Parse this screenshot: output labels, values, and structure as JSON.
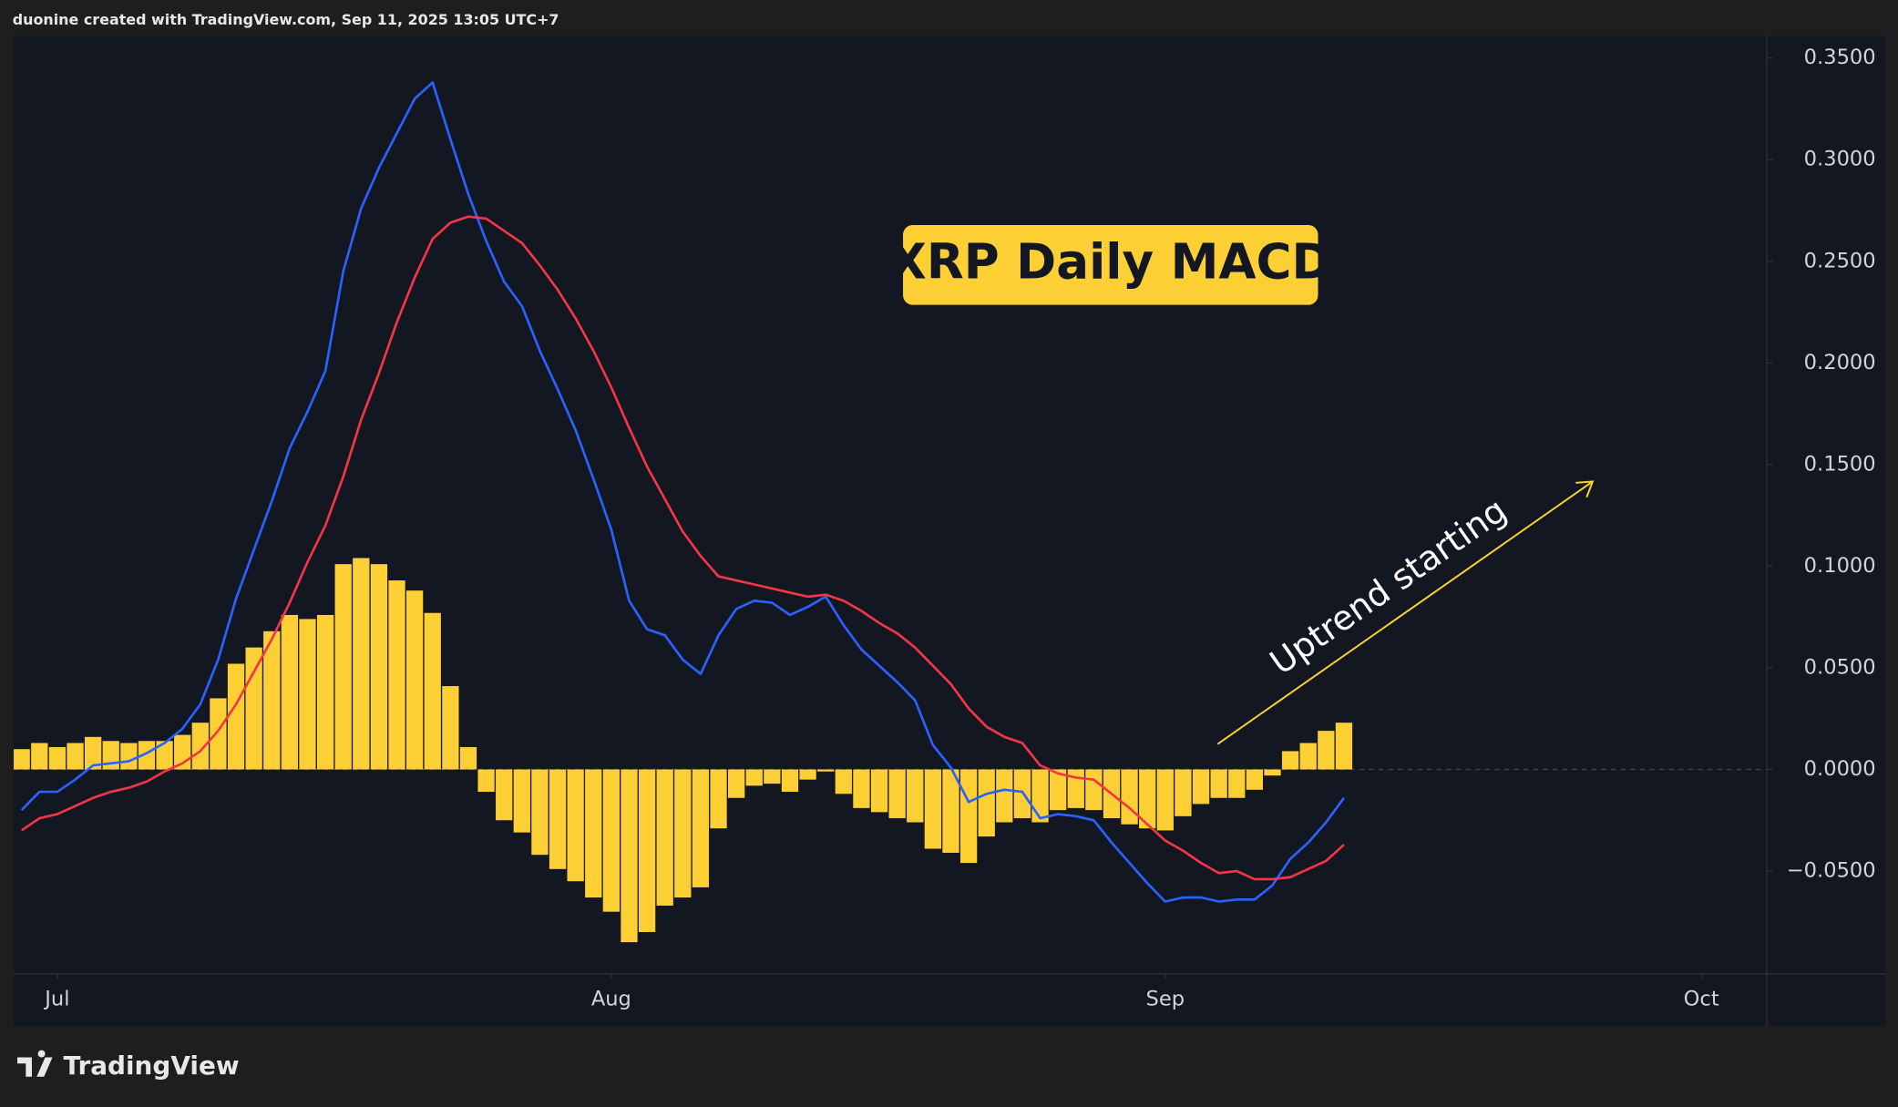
{
  "header": "duonine created with TradingView.com, Sep 11, 2025 13:05 UTC+7",
  "footer": "TradingView",
  "chart_data": {
    "type": "macd",
    "title": "XRP Daily MACD",
    "annotation": "Uptrend starting",
    "x": [
      -2,
      -1,
      0,
      1,
      2,
      3,
      4,
      5,
      6,
      7,
      8,
      9,
      10,
      11,
      12,
      13,
      14,
      15,
      16,
      17,
      18,
      19,
      20,
      21,
      22,
      23,
      24,
      25,
      26,
      27,
      28,
      29,
      30,
      31,
      32,
      33,
      34,
      35,
      36,
      37,
      38,
      39,
      40,
      41,
      42,
      43,
      44,
      45,
      46,
      47,
      48,
      49,
      50,
      51,
      52,
      53,
      54,
      55,
      56,
      57,
      58,
      59,
      60,
      61,
      62,
      63,
      64,
      65,
      66,
      67,
      68,
      69,
      70,
      71,
      72
    ],
    "xlim": [
      -2.44,
      95.67
    ],
    "xticks": [
      {
        "value": 0,
        "label": "Jul"
      },
      {
        "value": 31,
        "label": "Aug"
      },
      {
        "value": 62,
        "label": "Sep"
      },
      {
        "value": 92,
        "label": "Oct"
      }
    ],
    "ylim": [
      -0.1006,
      0.3607
    ],
    "yticks": [
      {
        "value": -0.05,
        "label": "−0.0500"
      },
      {
        "value": 0,
        "label": "0.0000"
      },
      {
        "value": 0.05,
        "label": "0.0500"
      },
      {
        "value": 0.1,
        "label": "0.1000"
      },
      {
        "value": 0.15,
        "label": "0.1500"
      },
      {
        "value": 0.2,
        "label": "0.2000"
      },
      {
        "value": 0.25,
        "label": "0.2500"
      },
      {
        "value": 0.3,
        "label": "0.3000"
      },
      {
        "value": 0.35,
        "label": "0.3500"
      }
    ],
    "zero_line": true,
    "series": [
      {
        "type": "bar",
        "color": "#fcd034",
        "values": [
          0.01,
          0.013,
          0.011,
          0.013,
          0.016,
          0.014,
          0.013,
          0.014,
          0.014,
          0.017,
          0.023,
          0.035,
          0.052,
          0.06,
          0.068,
          0.076,
          0.074,
          0.076,
          0.101,
          0.104,
          0.101,
          0.093,
          0.088,
          0.077,
          0.041,
          0.011,
          -0.011,
          -0.025,
          -0.031,
          -0.042,
          -0.049,
          -0.055,
          -0.063,
          -0.07,
          -0.085,
          -0.08,
          -0.067,
          -0.063,
          -0.058,
          -0.029,
          -0.014,
          -0.008,
          -0.007,
          -0.011,
          -0.005,
          -0.001,
          -0.012,
          -0.019,
          -0.021,
          -0.024,
          -0.026,
          -0.039,
          -0.041,
          -0.046,
          -0.033,
          -0.026,
          -0.024,
          -0.026,
          -0.02,
          -0.019,
          -0.02,
          -0.024,
          -0.027,
          -0.029,
          -0.03,
          -0.023,
          -0.017,
          -0.014,
          -0.014,
          -0.01,
          -0.003,
          0.009,
          0.013,
          0.019,
          0.023
        ]
      },
      {
        "type": "line",
        "color": "#2962ff",
        "values": [
          -0.02,
          -0.011,
          -0.011,
          -0.005,
          0.002,
          0.003,
          0.004,
          0.008,
          0.013,
          0.02,
          0.032,
          0.054,
          0.084,
          0.108,
          0.132,
          0.158,
          0.176,
          0.196,
          0.245,
          0.276,
          0.296,
          0.313,
          0.33,
          0.338,
          0.31,
          0.283,
          0.26,
          0.24,
          0.228,
          0.206,
          0.187,
          0.167,
          0.143,
          0.118,
          0.083,
          0.069,
          0.066,
          0.054,
          0.047,
          0.066,
          0.079,
          0.083,
          0.082,
          0.076,
          0.08,
          0.085,
          0.071,
          0.059,
          0.051,
          0.043,
          0.034,
          0.012,
          0.001,
          -0.016,
          -0.012,
          -0.01,
          -0.011,
          -0.024,
          -0.022,
          -0.023,
          -0.025,
          -0.036,
          -0.046,
          -0.056,
          -0.065,
          -0.063,
          -0.063,
          -0.065,
          -0.064,
          -0.064,
          -0.057,
          -0.044,
          -0.036,
          -0.026,
          -0.014
        ]
      },
      {
        "type": "line",
        "color": "#f23645",
        "values": [
          -0.03,
          -0.024,
          -0.022,
          -0.018,
          -0.014,
          -0.011,
          -0.009,
          -0.006,
          -0.001,
          0.003,
          0.009,
          0.019,
          0.032,
          0.048,
          0.064,
          0.082,
          0.102,
          0.12,
          0.144,
          0.172,
          0.195,
          0.22,
          0.242,
          0.261,
          0.269,
          0.272,
          0.271,
          0.265,
          0.259,
          0.248,
          0.236,
          0.222,
          0.206,
          0.188,
          0.168,
          0.149,
          0.133,
          0.117,
          0.105,
          0.095,
          0.093,
          0.091,
          0.089,
          0.087,
          0.085,
          0.086,
          0.083,
          0.078,
          0.072,
          0.067,
          0.06,
          0.051,
          0.042,
          0.03,
          0.021,
          0.016,
          0.013,
          0.002,
          -0.002,
          -0.004,
          -0.005,
          -0.012,
          -0.019,
          -0.027,
          -0.035,
          -0.04,
          -0.046,
          -0.051,
          -0.05,
          -0.054,
          -0.054,
          -0.053,
          -0.049,
          -0.045,
          -0.037
        ]
      }
    ]
  }
}
